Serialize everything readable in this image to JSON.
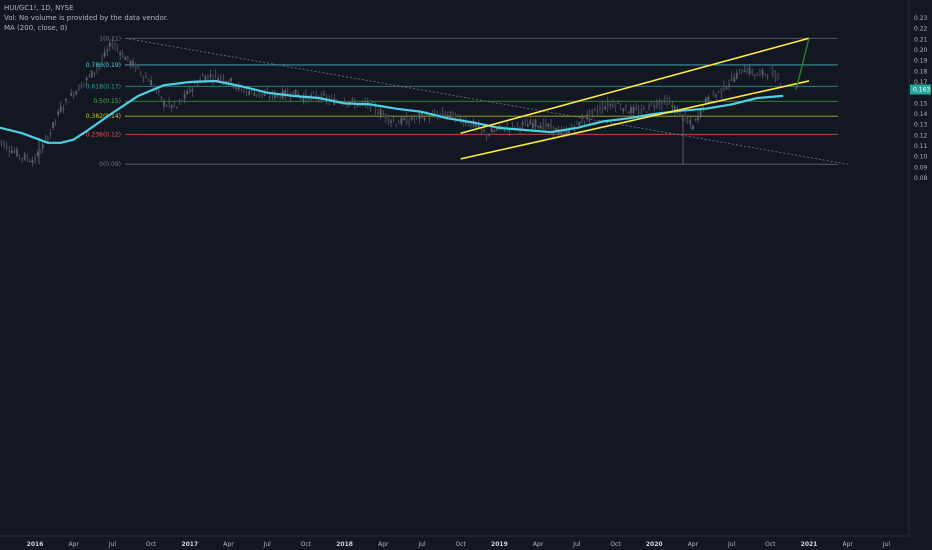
{
  "legend": {
    "symbol_line": "HUI/GC1!, 1D, NYSE",
    "volume_note": "Vol: No volume is provided by the data vendor.",
    "indicator": "MA (200, close, 0)"
  },
  "price_badge": {
    "value": "0.163",
    "color": "#26a69a"
  },
  "chart_data": {
    "type": "line",
    "title": "",
    "xlabel": "",
    "ylabel": "",
    "ylim": [
      0.08,
      0.23
    ],
    "x_ticks": [
      "2016",
      "Apr",
      "Jul",
      "Oct",
      "2017",
      "Apr",
      "Jul",
      "Oct",
      "2018",
      "Apr",
      "Jul",
      "Oct",
      "2019",
      "Apr",
      "Jul",
      "Oct",
      "2020",
      "Apr",
      "Jul",
      "Oct",
      "2021",
      "Apr",
      "Jul"
    ],
    "y_ticks": [
      "0.23",
      "0.22",
      "0.21",
      "0.20",
      "0.19",
      "0.18",
      "0.17",
      "0.16",
      "0.15",
      "0.14",
      "0.13",
      "0.12",
      "0.11",
      "0.10",
      "0.09",
      "0.08"
    ],
    "grid": false,
    "series": [
      {
        "kind": "candles",
        "x": [
          "2015-10",
          "2015-11",
          "2015-12",
          "2016-01",
          "2016-02",
          "2016-03",
          "2016-04",
          "2016-05",
          "2016-06",
          "2016-07",
          "2016-08",
          "2016-09",
          "2016-10",
          "2016-11",
          "2016-12",
          "2017-01",
          "2017-02",
          "2017-03",
          "2017-04",
          "2017-05",
          "2017-06",
          "2017-07",
          "2017-08",
          "2017-09",
          "2017-10",
          "2017-11",
          "2017-12",
          "2018-01",
          "2018-02",
          "2018-03",
          "2018-04",
          "2018-05",
          "2018-06",
          "2018-07",
          "2018-08",
          "2018-09",
          "2018-10",
          "2018-11",
          "2018-12",
          "2019-01",
          "2019-02",
          "2019-03",
          "2019-04",
          "2019-05",
          "2019-06",
          "2019-07",
          "2019-08",
          "2019-09",
          "2019-10",
          "2019-11",
          "2019-12",
          "2020-01",
          "2020-02",
          "2020-03",
          "2020-04",
          "2020-05",
          "2020-06",
          "2020-07",
          "2020-08",
          "2020-09",
          "2020-10",
          "2020-11"
        ],
        "values": [
          0.118,
          0.108,
          0.1,
          0.097,
          0.118,
          0.145,
          0.16,
          0.172,
          0.186,
          0.207,
          0.193,
          0.182,
          0.17,
          0.15,
          0.146,
          0.162,
          0.175,
          0.176,
          0.172,
          0.163,
          0.16,
          0.157,
          0.158,
          0.16,
          0.155,
          0.157,
          0.152,
          0.153,
          0.149,
          0.149,
          0.14,
          0.132,
          0.134,
          0.138,
          0.138,
          0.14,
          0.135,
          0.13,
          0.121,
          0.126,
          0.128,
          0.13,
          0.131,
          0.127,
          0.121,
          0.13,
          0.139,
          0.147,
          0.15,
          0.144,
          0.142,
          0.15,
          0.152,
          0.14,
          0.128,
          0.152,
          0.16,
          0.172,
          0.183,
          0.176,
          0.18,
          0.168
        ]
      },
      {
        "name": "MA (200, close, 0)",
        "color": "#4dd0e1",
        "x": [
          "2015-10",
          "2015-12",
          "2016-02",
          "2016-03",
          "2016-04",
          "2016-05",
          "2016-07",
          "2016-09",
          "2016-11",
          "2017-01",
          "2017-03",
          "2017-05",
          "2017-07",
          "2017-09",
          "2017-11",
          "2018-01",
          "2018-03",
          "2018-05",
          "2018-07",
          "2018-09",
          "2018-11",
          "2019-01",
          "2019-03",
          "2019-05",
          "2019-07",
          "2019-09",
          "2019-11",
          "2020-01",
          "2020-03",
          "2020-05",
          "2020-07",
          "2020-09",
          "2020-11"
        ],
        "values": [
          0.128,
          0.122,
          0.113,
          0.113,
          0.116,
          0.124,
          0.141,
          0.157,
          0.167,
          0.17,
          0.171,
          0.166,
          0.16,
          0.157,
          0.155,
          0.15,
          0.149,
          0.145,
          0.142,
          0.136,
          0.132,
          0.127,
          0.125,
          0.123,
          0.127,
          0.133,
          0.136,
          0.14,
          0.143,
          0.145,
          0.149,
          0.155,
          0.157
        ]
      }
    ],
    "fibonacci": [
      {
        "label": "1(0.21)",
        "value": 0.211,
        "color": "#787b86"
      },
      {
        "label": "0.786(0.19)",
        "value": 0.186,
        "color": "#4dd0e1"
      },
      {
        "label": "0.618(0.17)",
        "value": 0.166,
        "color": "#26a69a"
      },
      {
        "label": "0.5(0.15)",
        "value": 0.152,
        "color": "#4caf50"
      },
      {
        "label": "0.382(0.14)",
        "value": 0.138,
        "color": "#c0ca33"
      },
      {
        "label": "0.236(0.12)",
        "value": 0.121,
        "color": "#ef5350"
      },
      {
        "label": "0(0.09)",
        "value": 0.093,
        "color": "#787b86"
      }
    ],
    "drawings": {
      "channel_color": "#ffeb3b",
      "channel_upper": [
        [
          "2018-10",
          0.122
        ],
        [
          "2021-01",
          0.211
        ]
      ],
      "channel_lower": [
        [
          "2018-10",
          0.098
        ],
        [
          "2021-01",
          0.171
        ]
      ],
      "target_color": "#2e7d32",
      "target_path": [
        [
          "2020-12",
          0.163
        ],
        [
          "2021-01",
          0.211
        ]
      ],
      "diagonal": [
        [
          "2016-08",
          0.211
        ],
        [
          "2021-04",
          0.093
        ]
      ]
    }
  }
}
